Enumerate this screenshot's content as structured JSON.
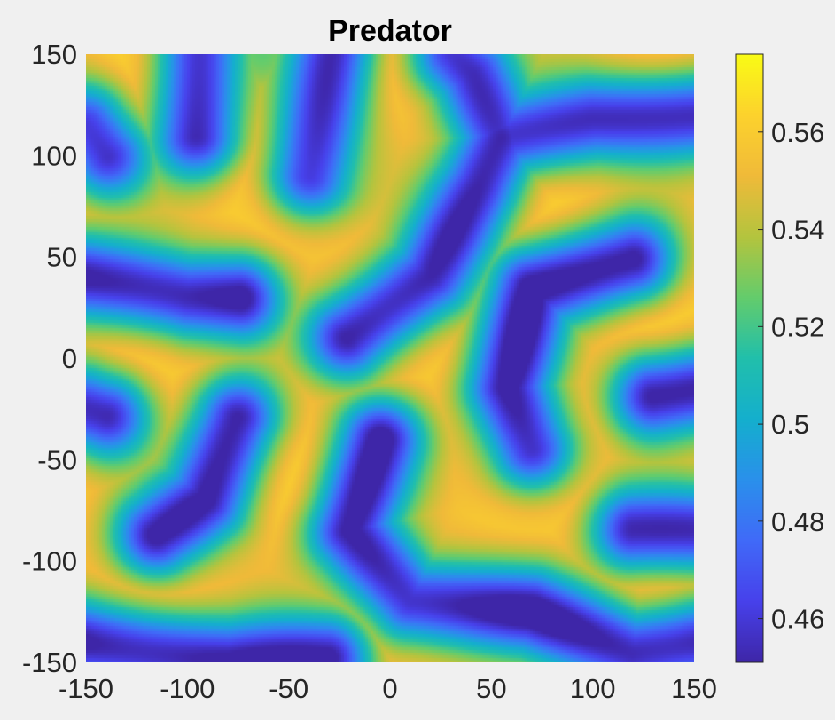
{
  "chart_data": {
    "type": "heatmap",
    "title": "Predator",
    "xlabel": "",
    "ylabel": "",
    "xlim": [
      -150,
      150
    ],
    "ylim": [
      -150,
      150
    ],
    "x_ticks": [
      "-150",
      "-100",
      "-50",
      "0",
      "50",
      "100",
      "150"
    ],
    "y_ticks": [
      "150",
      "100",
      "50",
      "0",
      "-50",
      "-100",
      "-150"
    ],
    "colorbar": {
      "range": [
        0.451,
        0.576
      ],
      "ticks": [
        "0.56",
        "0.54",
        "0.52",
        "0.5",
        "0.48",
        "0.46"
      ],
      "colormap": "parula"
    },
    "low_value_regions": [
      {
        "shape": "curve",
        "points": [
          [
            -150,
            115
          ],
          [
            -140,
            100
          ]
        ],
        "depth": 0.8
      },
      {
        "shape": "curve",
        "points": [
          [
            -95,
            150
          ],
          [
            -95,
            110
          ]
        ],
        "depth": 0.85
      },
      {
        "shape": "curve",
        "points": [
          [
            -28,
            150
          ],
          [
            -40,
            90
          ]
        ],
        "depth": 0.85
      },
      {
        "shape": "curve",
        "points": [
          [
            -75,
            150
          ],
          [
            -65,
            150
          ]
        ],
        "depth": 0.2
      },
      {
        "shape": "curve",
        "points": [
          [
            -150,
            40
          ],
          [
            -100,
            30
          ],
          [
            -75,
            30
          ]
        ],
        "depth": 0.9
      },
      {
        "shape": "curve",
        "points": [
          [
            -20,
            10
          ],
          [
            20,
            40
          ],
          [
            45,
            85
          ],
          [
            55,
            108
          ]
        ],
        "depth": 0.9
      },
      {
        "shape": "curve",
        "points": [
          [
            55,
            108
          ],
          [
            40,
            140
          ],
          [
            30,
            150
          ]
        ],
        "depth": 0.85
      },
      {
        "shape": "curve",
        "points": [
          [
            55,
            108
          ],
          [
            100,
            118
          ],
          [
            150,
            120
          ]
        ],
        "depth": 0.85
      },
      {
        "shape": "curve",
        "points": [
          [
            120,
            48
          ],
          [
            70,
            35
          ],
          [
            58,
            -15
          ],
          [
            70,
            -45
          ]
        ],
        "depth": 0.9
      },
      {
        "shape": "curve",
        "points": [
          [
            150,
            -15
          ],
          [
            130,
            -18
          ]
        ],
        "depth": 0.9
      },
      {
        "shape": "curve",
        "points": [
          [
            -150,
            -25
          ],
          [
            -140,
            -28
          ]
        ],
        "depth": 0.85
      },
      {
        "shape": "curve",
        "points": [
          [
            -75,
            -30
          ],
          [
            -90,
            -70
          ],
          [
            -115,
            -88
          ]
        ],
        "depth": 0.9
      },
      {
        "shape": "curve",
        "points": [
          [
            -5,
            -40
          ],
          [
            -20,
            -85
          ],
          [
            10,
            -120
          ],
          [
            70,
            -125
          ],
          [
            120,
            -145
          ],
          [
            150,
            -140
          ]
        ],
        "depth": 0.9
      },
      {
        "shape": "curve",
        "points": [
          [
            150,
            -85
          ],
          [
            120,
            -85
          ]
        ],
        "depth": 0.85
      },
      {
        "shape": "curve",
        "points": [
          [
            -150,
            -140
          ],
          [
            -80,
            -150
          ],
          [
            -30,
            -148
          ]
        ],
        "depth": 0.9
      }
    ]
  }
}
